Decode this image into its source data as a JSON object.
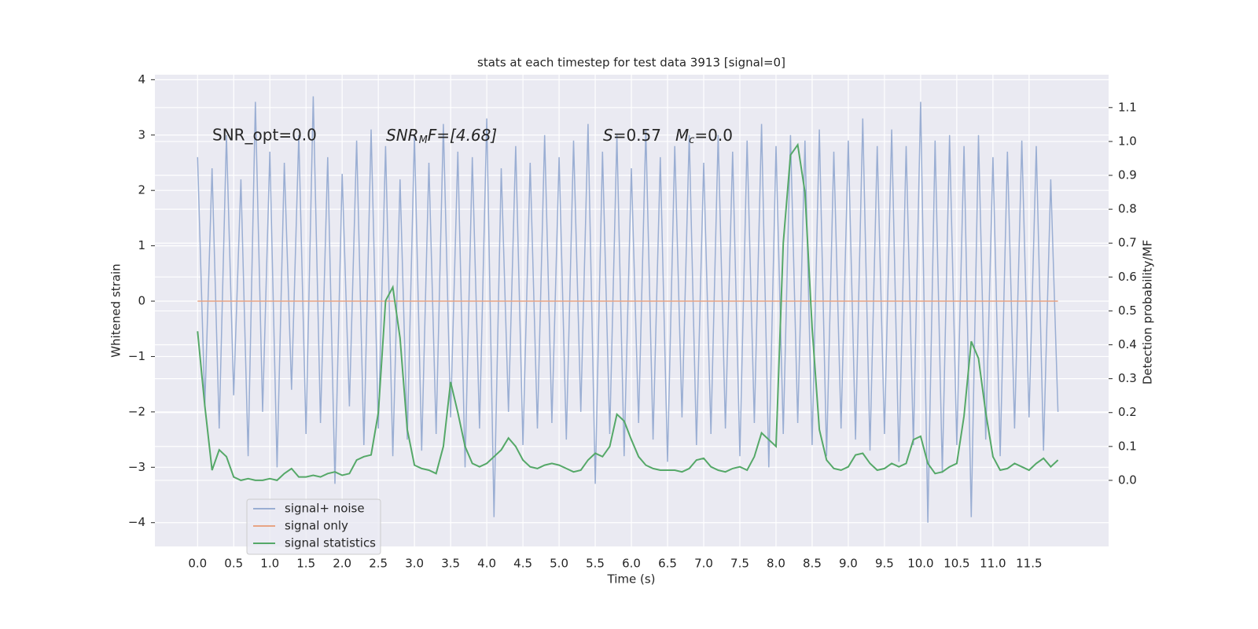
{
  "chart_data": {
    "type": "line",
    "title": "stats at each timestep for test data 3913 [signal=0]",
    "xlabel": "Time (s)",
    "ylabel": "Whitened strain",
    "y2label": "Detection probability/MF",
    "annotations": [
      [
        "SNR_opt=0.0"
      ],
      [
        "SNR",
        "M",
        "F=[4.68]"
      ],
      [
        "S",
        "=0.57"
      ],
      [
        "M",
        "c",
        "=0.0"
      ]
    ],
    "xlim": [
      -0.59,
      12.6
    ],
    "ylim": [
      -4.43,
      4.09
    ],
    "y2lim": [
      -0.195,
      1.197
    ],
    "xticks": [
      {
        "value": 0,
        "label": "0.0"
      },
      {
        "value": 0.5,
        "label": "0.5"
      },
      {
        "value": 1,
        "label": "1.0"
      },
      {
        "value": 1.5,
        "label": "1.5"
      },
      {
        "value": 2,
        "label": "2.0"
      },
      {
        "value": 2.5,
        "label": "2.5"
      },
      {
        "value": 3,
        "label": "3.0"
      },
      {
        "value": 3.5,
        "label": "3.5"
      },
      {
        "value": 4,
        "label": "4.0"
      },
      {
        "value": 4.5,
        "label": "4.5"
      },
      {
        "value": 5,
        "label": "5.0"
      },
      {
        "value": 5.5,
        "label": "5.5"
      },
      {
        "value": 6,
        "label": "6.0"
      },
      {
        "value": 6.5,
        "label": "6.5"
      },
      {
        "value": 7,
        "label": "7.0"
      },
      {
        "value": 7.5,
        "label": "7.5"
      },
      {
        "value": 8,
        "label": "8.0"
      },
      {
        "value": 8.5,
        "label": "8.5"
      },
      {
        "value": 9,
        "label": "9.0"
      },
      {
        "value": 9.5,
        "label": "9.5"
      },
      {
        "value": 10,
        "label": "10.0"
      },
      {
        "value": 10.5,
        "label": "10.5"
      },
      {
        "value": 11,
        "label": "11.0"
      },
      {
        "value": 11.5,
        "label": "11.5"
      }
    ],
    "yticks": [
      {
        "value": -4,
        "label": "−4"
      },
      {
        "value": -3,
        "label": "−3"
      },
      {
        "value": -2,
        "label": "−2"
      },
      {
        "value": -1,
        "label": "−1"
      },
      0,
      1,
      2,
      3,
      4
    ],
    "y2ticks": [
      {
        "value": 0,
        "label": "0.0"
      },
      {
        "value": 0.1,
        "label": "0.1"
      },
      {
        "value": 0.2,
        "label": "0.2"
      },
      {
        "value": 0.3,
        "label": "0.3"
      },
      {
        "value": 0.4,
        "label": "0.4"
      },
      {
        "value": 0.5,
        "label": "0.5"
      },
      {
        "value": 0.6,
        "label": "0.6"
      },
      {
        "value": 0.7,
        "label": "0.7"
      },
      {
        "value": 0.8,
        "label": "0.8"
      },
      {
        "value": 0.9,
        "label": "0.9"
      },
      {
        "value": 1,
        "label": "1.0"
      },
      {
        "value": 1.1,
        "label": "1.1"
      }
    ],
    "grid": true,
    "legend": "lower left",
    "x": [
      0,
      0.1,
      0.2,
      0.3,
      0.4,
      0.5,
      0.6,
      0.7,
      0.8,
      0.9,
      1,
      1.1,
      1.2,
      1.3,
      1.4,
      1.5,
      1.6,
      1.7,
      1.8,
      1.9,
      2,
      2.1,
      2.2,
      2.3,
      2.4,
      2.5,
      2.6,
      2.7,
      2.8,
      2.9,
      3,
      3.1,
      3.2,
      3.3,
      3.4,
      3.5,
      3.6,
      3.7,
      3.8,
      3.9,
      4,
      4.1,
      4.2,
      4.3,
      4.4,
      4.5,
      4.6,
      4.7,
      4.8,
      4.9,
      5,
      5.1,
      5.2,
      5.3,
      5.4,
      5.5,
      5.6,
      5.7,
      5.8,
      5.9,
      6,
      6.1,
      6.2,
      6.3,
      6.4,
      6.5,
      6.6,
      6.7,
      6.8,
      6.9,
      7,
      7.1,
      7.2,
      7.3,
      7.4,
      7.5,
      7.6,
      7.7,
      7.8,
      7.9,
      8,
      8.1,
      8.2,
      8.3,
      8.4,
      8.5,
      8.6,
      8.7,
      8.8,
      8.9,
      9,
      9.1,
      9.2,
      9.3,
      9.4,
      9.5,
      9.6,
      9.7,
      9.8,
      9.9,
      10,
      10.1,
      10.2,
      10.3,
      10.4,
      10.5,
      10.6,
      10.7,
      10.8,
      10.9,
      11,
      11.1,
      11.2,
      11.3,
      11.4,
      11.5,
      11.6,
      11.7,
      11.8,
      11.9
    ],
    "series": [
      {
        "name": "signal+ noise",
        "color": "#9aaed3",
        "values": [
          2.6,
          -1.9,
          2.4,
          -2.3,
          3.0,
          -1.7,
          2.2,
          -2.8,
          3.6,
          -2.0,
          2.7,
          -3.0,
          2.5,
          -1.6,
          3.0,
          -2.4,
          3.7,
          -2.2,
          2.6,
          -3.3,
          2.3,
          -1.9,
          2.9,
          -2.6,
          3.1,
          -2.3,
          2.8,
          -2.8,
          2.2,
          -2.5,
          3.0,
          -2.7,
          2.5,
          -2.4,
          3.2,
          -2.1,
          2.7,
          -3.0,
          2.6,
          -2.3,
          3.3,
          -3.9,
          2.4,
          -2.0,
          2.8,
          -2.6,
          2.5,
          -2.3,
          3.0,
          -2.2,
          2.6,
          -2.5,
          2.9,
          -2.0,
          3.2,
          -3.3,
          2.7,
          -2.4,
          3.0,
          -2.8,
          2.4,
          -2.2,
          3.1,
          -2.5,
          2.6,
          -2.9,
          2.8,
          -2.1,
          3.0,
          -2.6,
          2.5,
          -2.4,
          3.0,
          -2.3,
          2.7,
          -2.8,
          2.9,
          -2.2,
          3.2,
          -3.0,
          2.8,
          -2.4,
          3.0,
          -2.2,
          2.9,
          -2.6,
          3.1,
          -2.8,
          2.7,
          -2.3,
          2.9,
          -2.5,
          3.3,
          -2.7,
          2.8,
          -2.4,
          3.1,
          -2.9,
          2.8,
          -2.6,
          3.6,
          -4.0,
          2.9,
          -3.1,
          3.0,
          -2.6,
          2.8,
          -3.9,
          3.0,
          -2.5,
          2.6,
          -2.8,
          2.7,
          -2.3,
          2.9,
          -2.1,
          2.8,
          -2.7,
          2.2,
          -2.0
        ]
      },
      {
        "name": "signal only",
        "color": "#e8a484",
        "values": [
          0,
          0,
          0,
          0,
          0,
          0,
          0,
          0,
          0,
          0,
          0,
          0,
          0,
          0,
          0,
          0,
          0,
          0,
          0,
          0,
          0,
          0,
          0,
          0,
          0,
          0,
          0,
          0,
          0,
          0,
          0,
          0,
          0,
          0,
          0,
          0,
          0,
          0,
          0,
          0,
          0,
          0,
          0,
          0,
          0,
          0,
          0,
          0,
          0,
          0,
          0,
          0,
          0,
          0,
          0,
          0,
          0,
          0,
          0,
          0,
          0,
          0,
          0,
          0,
          0,
          0,
          0,
          0,
          0,
          0,
          0,
          0,
          0,
          0,
          0,
          0,
          0,
          0,
          0,
          0,
          0,
          0,
          0,
          0,
          0,
          0,
          0,
          0,
          0,
          0,
          0,
          0,
          0,
          0,
          0,
          0,
          0,
          0,
          0,
          0,
          0,
          0,
          0,
          0,
          0,
          0,
          0,
          0,
          0,
          0,
          0,
          0,
          0,
          0,
          0,
          0,
          0,
          0,
          0,
          0
        ]
      },
      {
        "name": "signal statistics",
        "color": "#55a868",
        "axis": "y2",
        "values": [
          0.44,
          0.22,
          0.03,
          0.09,
          0.07,
          0.01,
          0,
          0.005,
          0,
          0,
          0.005,
          0,
          0.02,
          0.035,
          0.01,
          0.01,
          0.015,
          0.01,
          0.02,
          0.025,
          0.015,
          0.02,
          0.06,
          0.07,
          0.075,
          0.2,
          0.53,
          0.57,
          0.42,
          0.15,
          0.045,
          0.035,
          0.03,
          0.02,
          0.1,
          0.29,
          0.2,
          0.1,
          0.05,
          0.04,
          0.05,
          0.07,
          0.09,
          0.125,
          0.1,
          0.06,
          0.04,
          0.035,
          0.045,
          0.05,
          0.045,
          0.035,
          0.025,
          0.03,
          0.06,
          0.08,
          0.07,
          0.1,
          0.195,
          0.175,
          0.12,
          0.07,
          0.045,
          0.035,
          0.03,
          0.03,
          0.03,
          0.025,
          0.035,
          0.06,
          0.065,
          0.04,
          0.03,
          0.025,
          0.035,
          0.04,
          0.03,
          0.07,
          0.14,
          0.12,
          0.1,
          0.7,
          0.96,
          0.99,
          0.85,
          0.45,
          0.15,
          0.06,
          0.035,
          0.03,
          0.04,
          0.075,
          0.08,
          0.05,
          0.03,
          0.035,
          0.05,
          0.04,
          0.05,
          0.12,
          0.13,
          0.05,
          0.02,
          0.025,
          0.04,
          0.05,
          0.19,
          0.41,
          0.36,
          0.2,
          0.07,
          0.03,
          0.035,
          0.05,
          0.04,
          0.03,
          0.05,
          0.065,
          0.04,
          0.06
        ]
      }
    ]
  }
}
